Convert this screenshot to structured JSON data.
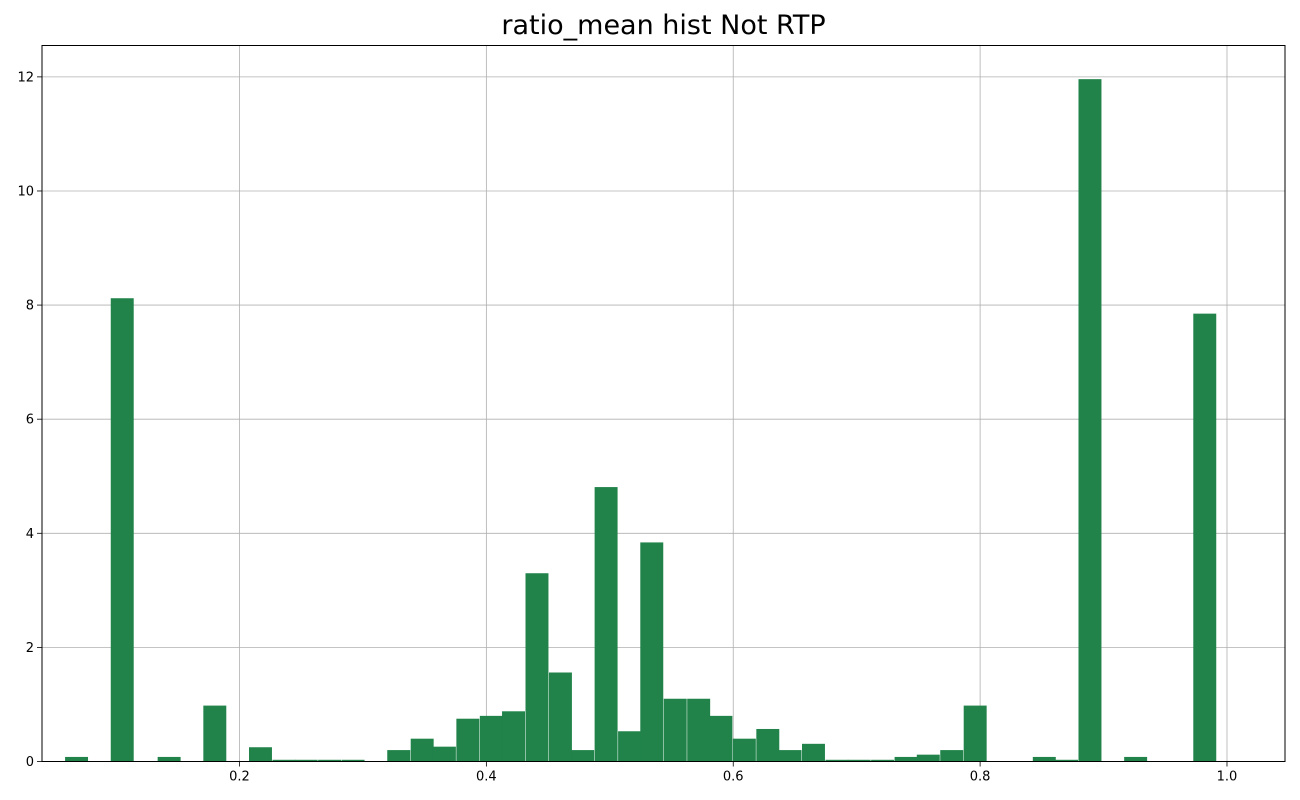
{
  "chart_data": {
    "type": "bar",
    "title": "ratio_mean hist Not RTP",
    "xlabel": "",
    "ylabel": "",
    "xlim": [
      0.04,
      1.047
    ],
    "ylim": [
      0,
      12.55
    ],
    "grid": true,
    "x_ticks": [
      0.2,
      0.4,
      0.6,
      0.8,
      1.0
    ],
    "x_tick_labels": [
      "0.2",
      "0.4",
      "0.6",
      "0.8",
      "1.0"
    ],
    "y_ticks": [
      0,
      2,
      4,
      6,
      8,
      10,
      12
    ],
    "y_tick_labels": [
      "0",
      "2",
      "4",
      "6",
      "8",
      "10",
      "12"
    ],
    "bar_color": "#21834a",
    "bin_width": 0.0186,
    "bins": [
      {
        "x": 0.068,
        "value": 0.08
      },
      {
        "x": 0.105,
        "value": 8.12
      },
      {
        "x": 0.143,
        "value": 0.08
      },
      {
        "x": 0.18,
        "value": 0.98
      },
      {
        "x": 0.217,
        "value": 0.25
      },
      {
        "x": 0.236,
        "value": 0.03
      },
      {
        "x": 0.254,
        "value": 0.03
      },
      {
        "x": 0.273,
        "value": 0.03
      },
      {
        "x": 0.292,
        "value": 0.03
      },
      {
        "x": 0.329,
        "value": 0.2
      },
      {
        "x": 0.348,
        "value": 0.4
      },
      {
        "x": 0.366,
        "value": 0.26
      },
      {
        "x": 0.385,
        "value": 0.75
      },
      {
        "x": 0.404,
        "value": 0.8
      },
      {
        "x": 0.422,
        "value": 0.88
      },
      {
        "x": 0.441,
        "value": 3.3
      },
      {
        "x": 0.46,
        "value": 1.56
      },
      {
        "x": 0.478,
        "value": 0.2
      },
      {
        "x": 0.497,
        "value": 4.81
      },
      {
        "x": 0.516,
        "value": 0.53
      },
      {
        "x": 0.534,
        "value": 3.84
      },
      {
        "x": 0.553,
        "value": 1.1
      },
      {
        "x": 0.572,
        "value": 1.1
      },
      {
        "x": 0.59,
        "value": 0.8
      },
      {
        "x": 0.609,
        "value": 0.4
      },
      {
        "x": 0.628,
        "value": 0.57
      },
      {
        "x": 0.646,
        "value": 0.2
      },
      {
        "x": 0.665,
        "value": 0.31
      },
      {
        "x": 0.684,
        "value": 0.03
      },
      {
        "x": 0.702,
        "value": 0.03
      },
      {
        "x": 0.721,
        "value": 0.03
      },
      {
        "x": 0.74,
        "value": 0.08
      },
      {
        "x": 0.758,
        "value": 0.12
      },
      {
        "x": 0.777,
        "value": 0.2
      },
      {
        "x": 0.796,
        "value": 0.98
      },
      {
        "x": 0.852,
        "value": 0.08
      },
      {
        "x": 0.87,
        "value": 0.03
      },
      {
        "x": 0.889,
        "value": 11.96
      },
      {
        "x": 0.926,
        "value": 0.08
      },
      {
        "x": 0.982,
        "value": 7.85
      }
    ]
  }
}
